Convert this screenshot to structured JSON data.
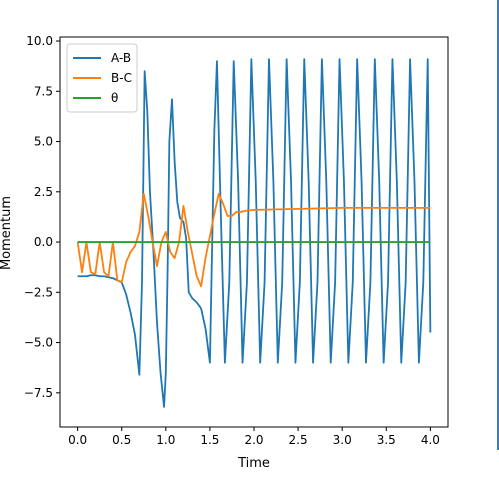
{
  "chart_data": {
    "type": "line",
    "title": "",
    "xlabel": "Time",
    "ylabel": "Momentum",
    "xlim": [
      -0.2,
      4.2
    ],
    "ylim": [
      -9.2,
      10.2
    ],
    "xticks": [
      0.0,
      0.5,
      1.0,
      1.5,
      2.0,
      2.5,
      3.0,
      3.5,
      4.0
    ],
    "xtick_labels": [
      "0.0",
      "0.5",
      "1.0",
      "1.5",
      "2.0",
      "2.5",
      "3.0",
      "3.5",
      "4.0"
    ],
    "yticks": [
      -7.5,
      -5.0,
      -2.5,
      0.0,
      2.5,
      5.0,
      7.5,
      10.0
    ],
    "ytick_labels": [
      "−7.5",
      "−5.0",
      "−2.5",
      "0.0",
      "2.5",
      "5.0",
      "7.5",
      "10.0"
    ],
    "grid": false,
    "legend_position": "top-left",
    "series": [
      {
        "name": "A-B",
        "color": "#1f77b4",
        "x": [
          0.0,
          0.05,
          0.1,
          0.15,
          0.2,
          0.25,
          0.3,
          0.35,
          0.4,
          0.45,
          0.5,
          0.55,
          0.6,
          0.65,
          0.7,
          0.73,
          0.76,
          0.79,
          0.82,
          0.86,
          0.9,
          0.94,
          0.98,
          1.0,
          1.02,
          1.04,
          1.07,
          1.1,
          1.13,
          1.16,
          1.2,
          1.23,
          1.26,
          1.3,
          1.35,
          1.4,
          1.45,
          1.5,
          1.55,
          1.58,
          1.62,
          1.67,
          1.72,
          1.77,
          1.82,
          1.87,
          1.92,
          1.97,
          2.02,
          2.07,
          2.12,
          2.17,
          2.22,
          2.27,
          2.32,
          2.37,
          2.42,
          2.47,
          2.52,
          2.57,
          2.62,
          2.67,
          2.72,
          2.77,
          2.82,
          2.87,
          2.92,
          2.97,
          3.02,
          3.07,
          3.12,
          3.17,
          3.22,
          3.27,
          3.32,
          3.37,
          3.42,
          3.47,
          3.52,
          3.57,
          3.62,
          3.67,
          3.72,
          3.77,
          3.82,
          3.87,
          3.92,
          3.97,
          4.0
        ],
        "y": [
          -1.7,
          -1.7,
          -1.7,
          -1.65,
          -1.65,
          -1.7,
          -1.7,
          -1.75,
          -1.8,
          -1.9,
          -2.0,
          -2.6,
          -3.5,
          -4.6,
          -6.6,
          -2.0,
          8.5,
          6.5,
          2.5,
          -0.5,
          -4.0,
          -6.5,
          -8.2,
          -6.5,
          -1.5,
          5.0,
          7.1,
          4.0,
          2.0,
          1.2,
          1.0,
          0.2,
          -2.5,
          -2.8,
          -3.0,
          -3.3,
          -4.3,
          -6.0,
          5.5,
          9.0,
          2.0,
          -6.0,
          -2.0,
          9.0,
          3.0,
          -6.0,
          -2.0,
          9.1,
          3.0,
          -6.0,
          -2.0,
          9.1,
          3.0,
          -6.0,
          -2.0,
          9.1,
          3.0,
          -6.0,
          -2.0,
          9.1,
          3.0,
          -6.0,
          -2.0,
          9.1,
          3.0,
          -6.0,
          -2.0,
          9.1,
          3.0,
          -6.0,
          -2.0,
          9.1,
          3.0,
          -6.0,
          -2.0,
          9.1,
          3.0,
          -6.0,
          -2.0,
          9.1,
          3.0,
          -6.0,
          -2.0,
          9.1,
          3.0,
          -6.0,
          -2.0,
          9.1,
          -4.5
        ]
      },
      {
        "name": "B-C",
        "color": "#ff7f0e",
        "x": [
          0.0,
          0.05,
          0.1,
          0.15,
          0.2,
          0.25,
          0.3,
          0.35,
          0.4,
          0.45,
          0.5,
          0.55,
          0.6,
          0.65,
          0.7,
          0.75,
          0.8,
          0.85,
          0.9,
          0.95,
          1.0,
          1.05,
          1.1,
          1.15,
          1.2,
          1.25,
          1.3,
          1.35,
          1.4,
          1.45,
          1.5,
          1.55,
          1.6,
          1.65,
          1.7,
          1.75,
          1.8,
          1.85,
          1.9,
          2.0,
          2.2,
          2.5,
          3.0,
          3.5,
          4.0
        ],
        "y": [
          0.0,
          -1.5,
          0.0,
          -1.5,
          -1.6,
          0.0,
          -1.5,
          -1.7,
          0.0,
          -1.9,
          -2.0,
          -1.0,
          -0.5,
          -0.2,
          0.5,
          2.4,
          1.3,
          0.0,
          -1.2,
          0.0,
          0.5,
          -0.5,
          -0.8,
          0.0,
          1.8,
          0.5,
          -0.6,
          -1.7,
          -2.2,
          -0.8,
          0.3,
          1.4,
          2.4,
          1.9,
          1.3,
          1.3,
          1.5,
          1.5,
          1.55,
          1.6,
          1.62,
          1.65,
          1.7,
          1.7,
          1.7
        ]
      },
      {
        "name": "θ",
        "color": "#2ca02c",
        "x": [
          0.0,
          4.0
        ],
        "y": [
          0.0,
          0.0
        ]
      }
    ]
  }
}
